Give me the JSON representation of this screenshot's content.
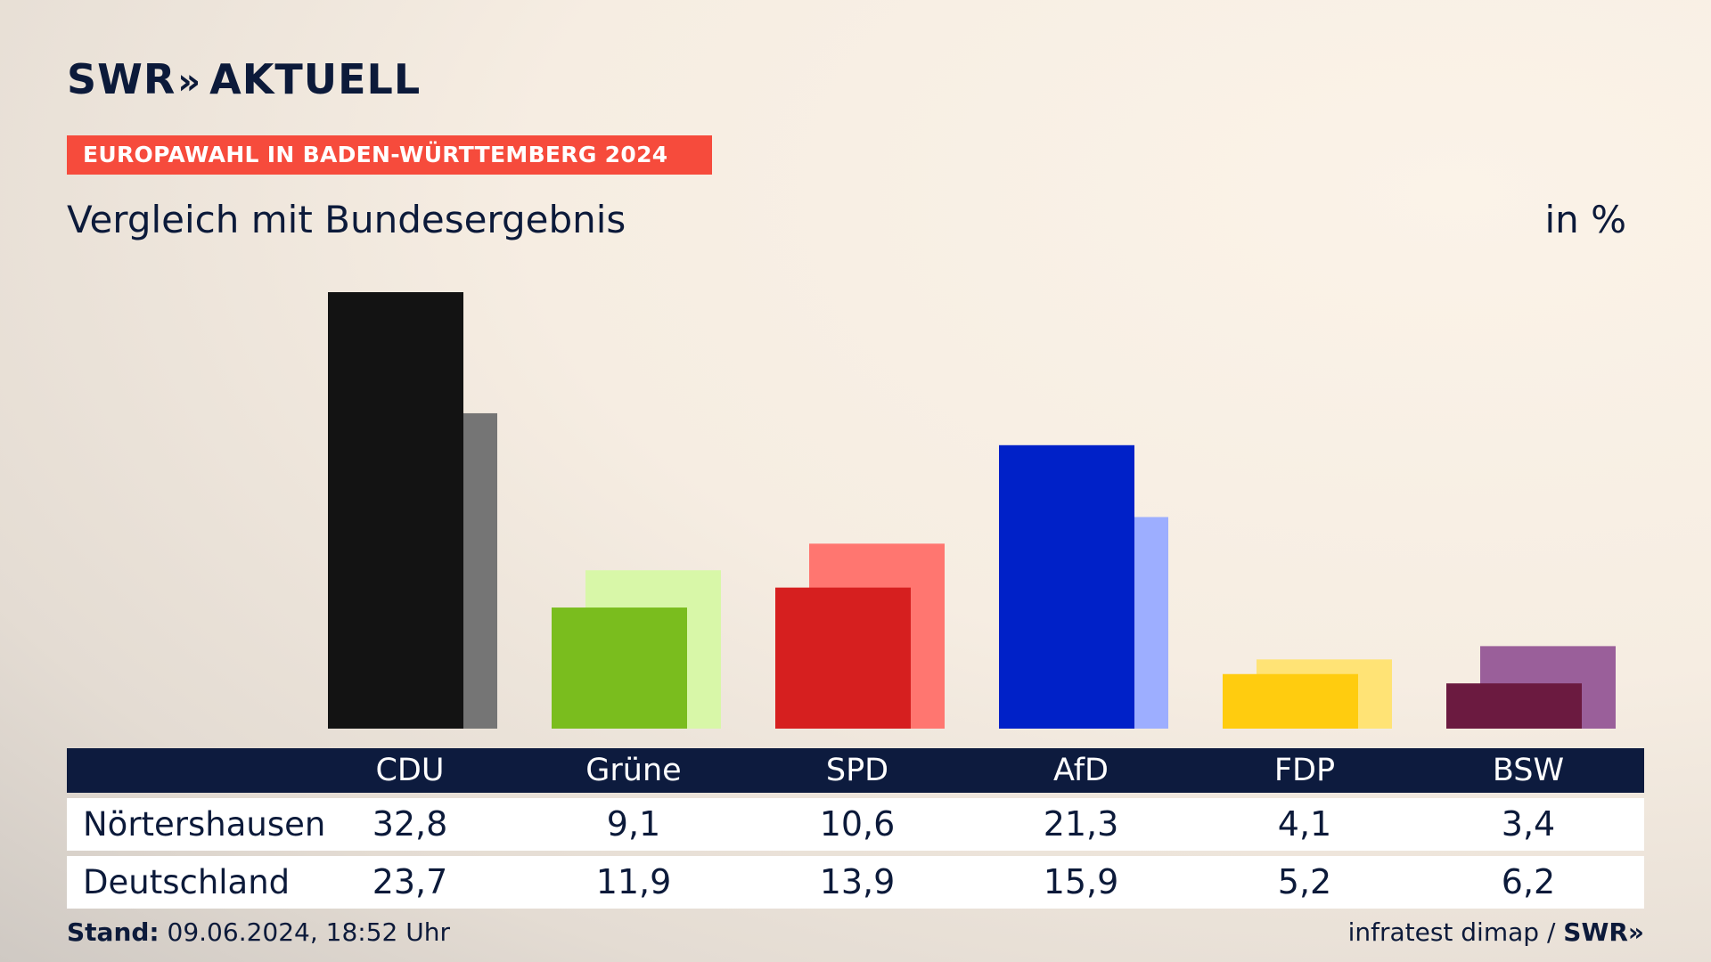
{
  "header": {
    "brand": "SWR",
    "brand_chevron": "»",
    "brand_suffix": "AKTUELL",
    "banner": "EUROPAWAHL IN BADEN-WÜRTTEMBERG 2024",
    "subtitle": "Vergleich mit Bundesergebnis",
    "unit": "in %"
  },
  "chart_data": {
    "type": "bar",
    "categories": [
      "CDU",
      "Grüne",
      "SPD",
      "AfD",
      "FDP",
      "BSW"
    ],
    "series": [
      {
        "name": "Nörtershausen",
        "values": [
          32.8,
          9.1,
          10.6,
          21.3,
          4.1,
          3.4
        ]
      },
      {
        "name": "Deutschland",
        "values": [
          23.7,
          11.9,
          13.9,
          15.9,
          5.2,
          6.2
        ]
      }
    ],
    "colors": {
      "primary": [
        "#131313",
        "#7abd1e",
        "#d61f1f",
        "#0021c8",
        "#ffcc0f",
        "#6b1a40"
      ],
      "secondary": [
        "#757575",
        "#d8f7a8",
        "#ff7670",
        "#9daeff",
        "#ffe375",
        "#9a5f9a"
      ]
    },
    "ylim": [
      0,
      32.8
    ],
    "legend": "table-below"
  },
  "table": {
    "rows": [
      {
        "label": "Nörtershausen",
        "values": [
          "32,8",
          "9,1",
          "10,6",
          "21,3",
          "4,1",
          "3,4"
        ]
      },
      {
        "label": "Deutschland",
        "values": [
          "23,7",
          "11,9",
          "13,9",
          "15,9",
          "5,2",
          "6,2"
        ]
      }
    ]
  },
  "footer": {
    "stand_label": "Stand:",
    "stand_value": "09.06.2024, 18:52 Uhr",
    "source": "infratest dimap /",
    "source_brand": "SWR»"
  }
}
